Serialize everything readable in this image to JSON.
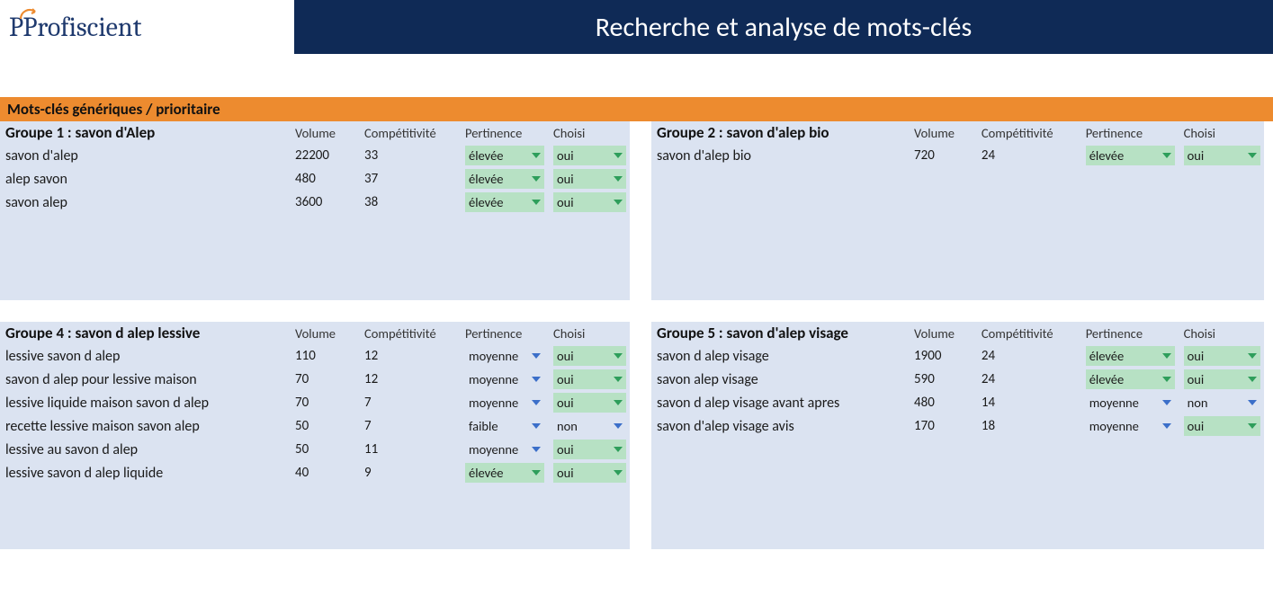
{
  "brand": "Profiscient",
  "page_title": "Recherche et analyse de mots-clés",
  "section_title": "Mots-clés génériques / prioritaire",
  "columns": {
    "volume": "Volume",
    "competitivite": "Compétitivité",
    "pertinence": "Pertinence",
    "choisi": "Choisi"
  },
  "colors": {
    "header_bg": "#0f2a56",
    "section_bg": "#ed8b2f",
    "panel_bg": "#dbe3f1",
    "dd_green_bg": "#b7e1c4",
    "caret_green": "#2e9e5b",
    "caret_blue": "#3b6fc9",
    "logo_text": "#1f3a6e",
    "arc_color": "#ed8b2f"
  },
  "pertinence_styles": {
    "élevée": {
      "bg": "green",
      "caret": "green"
    },
    "moyenne": {
      "bg": "plain",
      "caret": "blue"
    },
    "faible": {
      "bg": "plain",
      "caret": "blue"
    }
  },
  "choisi_styles": {
    "oui": {
      "bg": "green",
      "caret": "green"
    },
    "non": {
      "bg": "plain",
      "caret": "blue"
    }
  },
  "groups_top": [
    {
      "title": "Groupe 1 : savon d'Alep",
      "rows": [
        {
          "kw": "savon d'alep",
          "volume": "22200",
          "comp": "33",
          "pert": "élevée",
          "choisi": "oui"
        },
        {
          "kw": "alep savon",
          "volume": "480",
          "comp": "37",
          "pert": "élevée",
          "choisi": "oui"
        },
        {
          "kw": "savon alep",
          "volume": "3600",
          "comp": "38",
          "pert": "élevée",
          "choisi": "oui"
        }
      ],
      "pad_rows": 4
    },
    {
      "title": "Groupe 2 : savon d'alep bio",
      "rows": [
        {
          "kw": "savon d'alep bio",
          "volume": "720",
          "comp": "24",
          "pert": "élevée",
          "choisi": "oui"
        }
      ],
      "pad_rows": 6
    }
  ],
  "groups_bottom": [
    {
      "title": "Groupe 4 : savon d alep lessive",
      "rows": [
        {
          "kw": "lessive savon d alep",
          "volume": "110",
          "comp": "12",
          "pert": "moyenne",
          "choisi": "oui"
        },
        {
          "kw": "savon d alep pour lessive maison",
          "volume": "70",
          "comp": "12",
          "pert": "moyenne",
          "choisi": "oui"
        },
        {
          "kw": "lessive liquide maison savon d alep",
          "volume": "70",
          "comp": "7",
          "pert": "moyenne",
          "choisi": "oui"
        },
        {
          "kw": "recette lessive maison savon alep",
          "volume": "50",
          "comp": "7",
          "pert": "faible",
          "choisi": "non"
        },
        {
          "kw": "lessive au savon d alep",
          "volume": "50",
          "comp": "11",
          "pert": "moyenne",
          "choisi": "oui"
        },
        {
          "kw": "lessive savon d alep liquide",
          "volume": "40",
          "comp": "9",
          "pert": "élevée",
          "choisi": "oui"
        }
      ],
      "pad_rows": 3
    },
    {
      "title": "Groupe 5 : savon d'alep visage",
      "rows": [
        {
          "kw": "savon d alep visage",
          "volume": "1900",
          "comp": "24",
          "pert": "élevée",
          "choisi": "oui"
        },
        {
          "kw": "savon alep visage",
          "volume": "590",
          "comp": "24",
          "pert": "élevée",
          "choisi": "oui"
        },
        {
          "kw": "savon d alep visage avant apres",
          "volume": "480",
          "comp": "14",
          "pert": "moyenne",
          "choisi": "non"
        },
        {
          "kw": "savon d'alep visage avis",
          "volume": "170",
          "comp": "18",
          "pert": "moyenne",
          "choisi": "oui"
        }
      ],
      "pad_rows": 5
    }
  ]
}
